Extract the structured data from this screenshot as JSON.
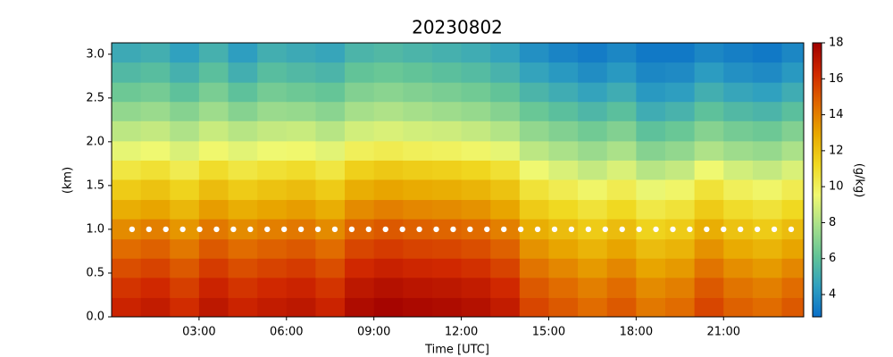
{
  "chart_data": {
    "type": "heatmap",
    "title": "20230802",
    "xlabel": "Time [UTC]",
    "ylabel": "(km)",
    "colorbar_label": "(g/kg)",
    "xlim": [
      0,
      23.75
    ],
    "ylim": [
      0,
      3.13
    ],
    "xticks": [
      {
        "value": 3,
        "label": "03:00"
      },
      {
        "value": 6,
        "label": "06:00"
      },
      {
        "value": 9,
        "label": "09:00"
      },
      {
        "value": 12,
        "label": "12:00"
      },
      {
        "value": 15,
        "label": "15:00"
      },
      {
        "value": 18,
        "label": "18:00"
      },
      {
        "value": 21,
        "label": "21:00"
      }
    ],
    "yticks": [
      {
        "value": 0,
        "label": "0.0"
      },
      0.5,
      {
        "value": 1,
        "label": "1.0"
      },
      1.5,
      {
        "value": 2,
        "label": "2.0"
      },
      2.5,
      {
        "value": 3,
        "label": "3.0"
      }
    ],
    "clim": [
      2.76,
      18
    ],
    "cticks": [
      4,
      6,
      8,
      10,
      12,
      14,
      16,
      18
    ],
    "colormap": [
      "#0a6fc8",
      "#2fa0c0",
      "#63c497",
      "#a8e08a",
      "#f0f870",
      "#f0d820",
      "#e8a800",
      "#e06800",
      "#d02800",
      "#a00000"
    ],
    "x_edges": [
      0,
      1,
      2,
      3,
      4,
      5,
      6,
      7,
      8,
      9,
      10,
      11,
      12,
      13,
      14,
      15,
      16,
      17,
      18,
      19,
      20,
      21,
      22,
      23,
      23.75
    ],
    "y_edges": [
      0,
      0.22,
      0.45,
      0.67,
      0.89,
      1.12,
      1.34,
      1.57,
      1.79,
      2.01,
      2.24,
      2.46,
      2.68,
      2.91,
      3.13
    ],
    "z": [
      [
        16.5,
        16.8,
        16.2,
        17.0,
        16.5,
        16.8,
        17.0,
        16.5,
        17.5,
        17.8,
        17.6,
        17.5,
        17.3,
        16.8,
        15.5,
        15.0,
        14.5,
        15.0,
        14.2,
        14.5,
        15.5,
        14.8,
        14.5,
        15.0
      ],
      [
        16.0,
        16.3,
        15.7,
        16.5,
        16.0,
        16.3,
        16.5,
        16.0,
        17.0,
        17.3,
        17.1,
        17.0,
        16.8,
        16.3,
        15.0,
        14.5,
        14.0,
        14.5,
        13.7,
        14.0,
        15.0,
        14.3,
        14.0,
        14.5
      ],
      [
        15.3,
        15.6,
        15.0,
        15.8,
        15.3,
        15.6,
        15.8,
        15.3,
        16.3,
        16.6,
        16.4,
        16.3,
        16.1,
        15.6,
        14.3,
        13.8,
        13.3,
        13.8,
        13.0,
        13.3,
        14.3,
        13.6,
        13.3,
        13.8
      ],
      [
        14.5,
        14.8,
        14.2,
        15.0,
        14.5,
        14.8,
        15.0,
        14.5,
        15.5,
        15.8,
        15.6,
        15.5,
        15.3,
        14.8,
        13.5,
        13.0,
        12.5,
        13.0,
        12.2,
        12.5,
        13.5,
        12.8,
        12.5,
        13.0
      ],
      [
        13.7,
        14.0,
        13.4,
        14.2,
        13.7,
        14.0,
        14.2,
        13.7,
        14.7,
        15.0,
        14.8,
        14.7,
        14.5,
        14.0,
        12.7,
        12.2,
        11.7,
        12.2,
        11.4,
        11.7,
        12.7,
        12.0,
        11.7,
        12.2
      ],
      [
        12.7,
        13.0,
        12.4,
        13.2,
        12.7,
        13.0,
        13.2,
        12.7,
        13.7,
        14.0,
        13.8,
        13.7,
        13.5,
        13.0,
        11.7,
        11.2,
        10.7,
        11.2,
        10.4,
        10.7,
        11.7,
        11.0,
        10.7,
        11.2
      ],
      [
        11.7,
        12.0,
        11.4,
        12.2,
        11.7,
        12.0,
        12.2,
        11.7,
        12.7,
        13.0,
        12.8,
        12.7,
        12.5,
        12.0,
        10.7,
        10.2,
        9.7,
        10.2,
        9.4,
        9.7,
        10.7,
        10.0,
        9.7,
        10.2
      ],
      [
        10.5,
        10.8,
        10.2,
        11.0,
        10.5,
        10.8,
        11.0,
        10.5,
        11.5,
        11.8,
        11.6,
        11.5,
        11.3,
        10.8,
        9.5,
        9.0,
        8.5,
        9.0,
        8.2,
        8.5,
        9.5,
        8.8,
        8.5,
        9.0
      ],
      [
        9.3,
        9.5,
        9.0,
        9.6,
        9.2,
        9.5,
        9.6,
        9.2,
        10.0,
        10.2,
        10.0,
        9.9,
        9.7,
        9.3,
        8.3,
        7.9,
        7.5,
        7.9,
        7.0,
        7.3,
        8.0,
        7.6,
        7.4,
        7.9
      ],
      [
        8.3,
        8.5,
        8.0,
        8.6,
        8.2,
        8.5,
        8.6,
        8.2,
        8.8,
        9.0,
        8.8,
        8.7,
        8.5,
        8.1,
        7.3,
        6.9,
        6.5,
        6.9,
        6.0,
        6.3,
        7.0,
        6.6,
        6.4,
        6.9
      ],
      [
        7.3,
        7.5,
        7.0,
        7.6,
        7.0,
        7.5,
        7.4,
        7.1,
        7.8,
        8.0,
        7.8,
        7.6,
        7.4,
        7.0,
        6.3,
        5.9,
        5.5,
        5.9,
        5.0,
        5.3,
        6.0,
        5.6,
        5.4,
        5.9
      ],
      [
        6.4,
        6.6,
        6.0,
        6.7,
        6.0,
        6.6,
        6.4,
        6.2,
        6.9,
        7.1,
        6.9,
        6.7,
        6.5,
        6.1,
        5.4,
        5.0,
        4.6,
        5.0,
        4.2,
        4.4,
        5.1,
        4.7,
        4.5,
        5.0
      ],
      [
        5.6,
        5.8,
        5.2,
        5.9,
        5.1,
        5.8,
        5.6,
        5.4,
        6.1,
        6.3,
        6.1,
        5.9,
        5.7,
        5.3,
        4.6,
        4.2,
        3.8,
        4.2,
        3.6,
        3.7,
        4.3,
        3.9,
        3.7,
        4.2
      ],
      [
        4.9,
        5.1,
        4.5,
        5.2,
        4.4,
        5.1,
        4.9,
        4.7,
        5.4,
        5.6,
        5.4,
        5.2,
        5.0,
        4.6,
        3.9,
        3.5,
        3.2,
        3.6,
        3.1,
        3.1,
        3.6,
        3.3,
        3.1,
        3.6
      ]
    ],
    "overlay": {
      "color": "#ffffff",
      "y": 1.0,
      "x": [
        0.7,
        1.28,
        1.86,
        2.44,
        3.02,
        3.6,
        4.18,
        4.76,
        5.34,
        5.92,
        6.5,
        7.08,
        7.66,
        8.24,
        8.82,
        9.4,
        9.98,
        10.56,
        11.14,
        11.72,
        12.3,
        12.88,
        13.46,
        14.04,
        14.62,
        15.2,
        15.78,
        16.36,
        16.94,
        17.52,
        18.1,
        18.68,
        19.26,
        19.84,
        20.42,
        21.0,
        21.58,
        22.16,
        22.74,
        23.32
      ]
    }
  }
}
